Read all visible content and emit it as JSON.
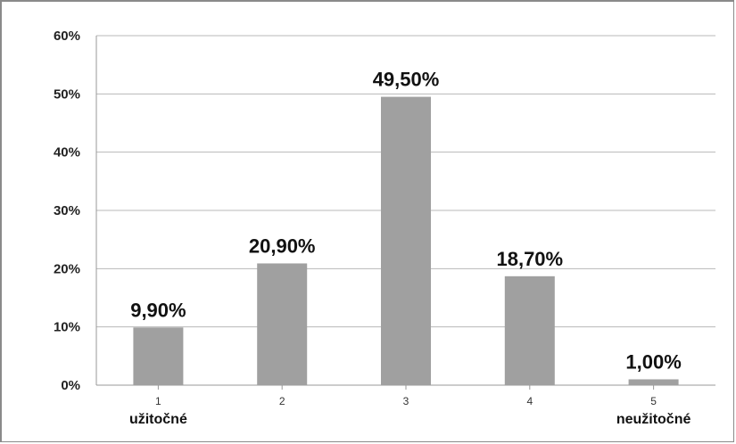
{
  "chart_data": {
    "type": "bar",
    "categories": [
      "1",
      "2",
      "3",
      "4",
      "5"
    ],
    "category_sublabels": [
      "užitočné",
      "",
      "",
      "",
      "neužitočné"
    ],
    "values": [
      9.9,
      20.9,
      49.5,
      18.7,
      1.0
    ],
    "data_labels": [
      "9,90%",
      "20,90%",
      "49,50%",
      "18,70%",
      "1,00%"
    ],
    "y_ticks": [
      0,
      10,
      20,
      30,
      40,
      50,
      60
    ],
    "y_tick_labels": [
      "0%",
      "10%",
      "20%",
      "30%",
      "40%",
      "50%",
      "60%"
    ],
    "ylim": [
      0,
      60
    ],
    "grid": true,
    "legend": "none",
    "colors": {
      "bar": "#a0a0a0",
      "grid": "#b8b8b8",
      "axis": "#999999",
      "frame": "#8a8a8a"
    }
  }
}
